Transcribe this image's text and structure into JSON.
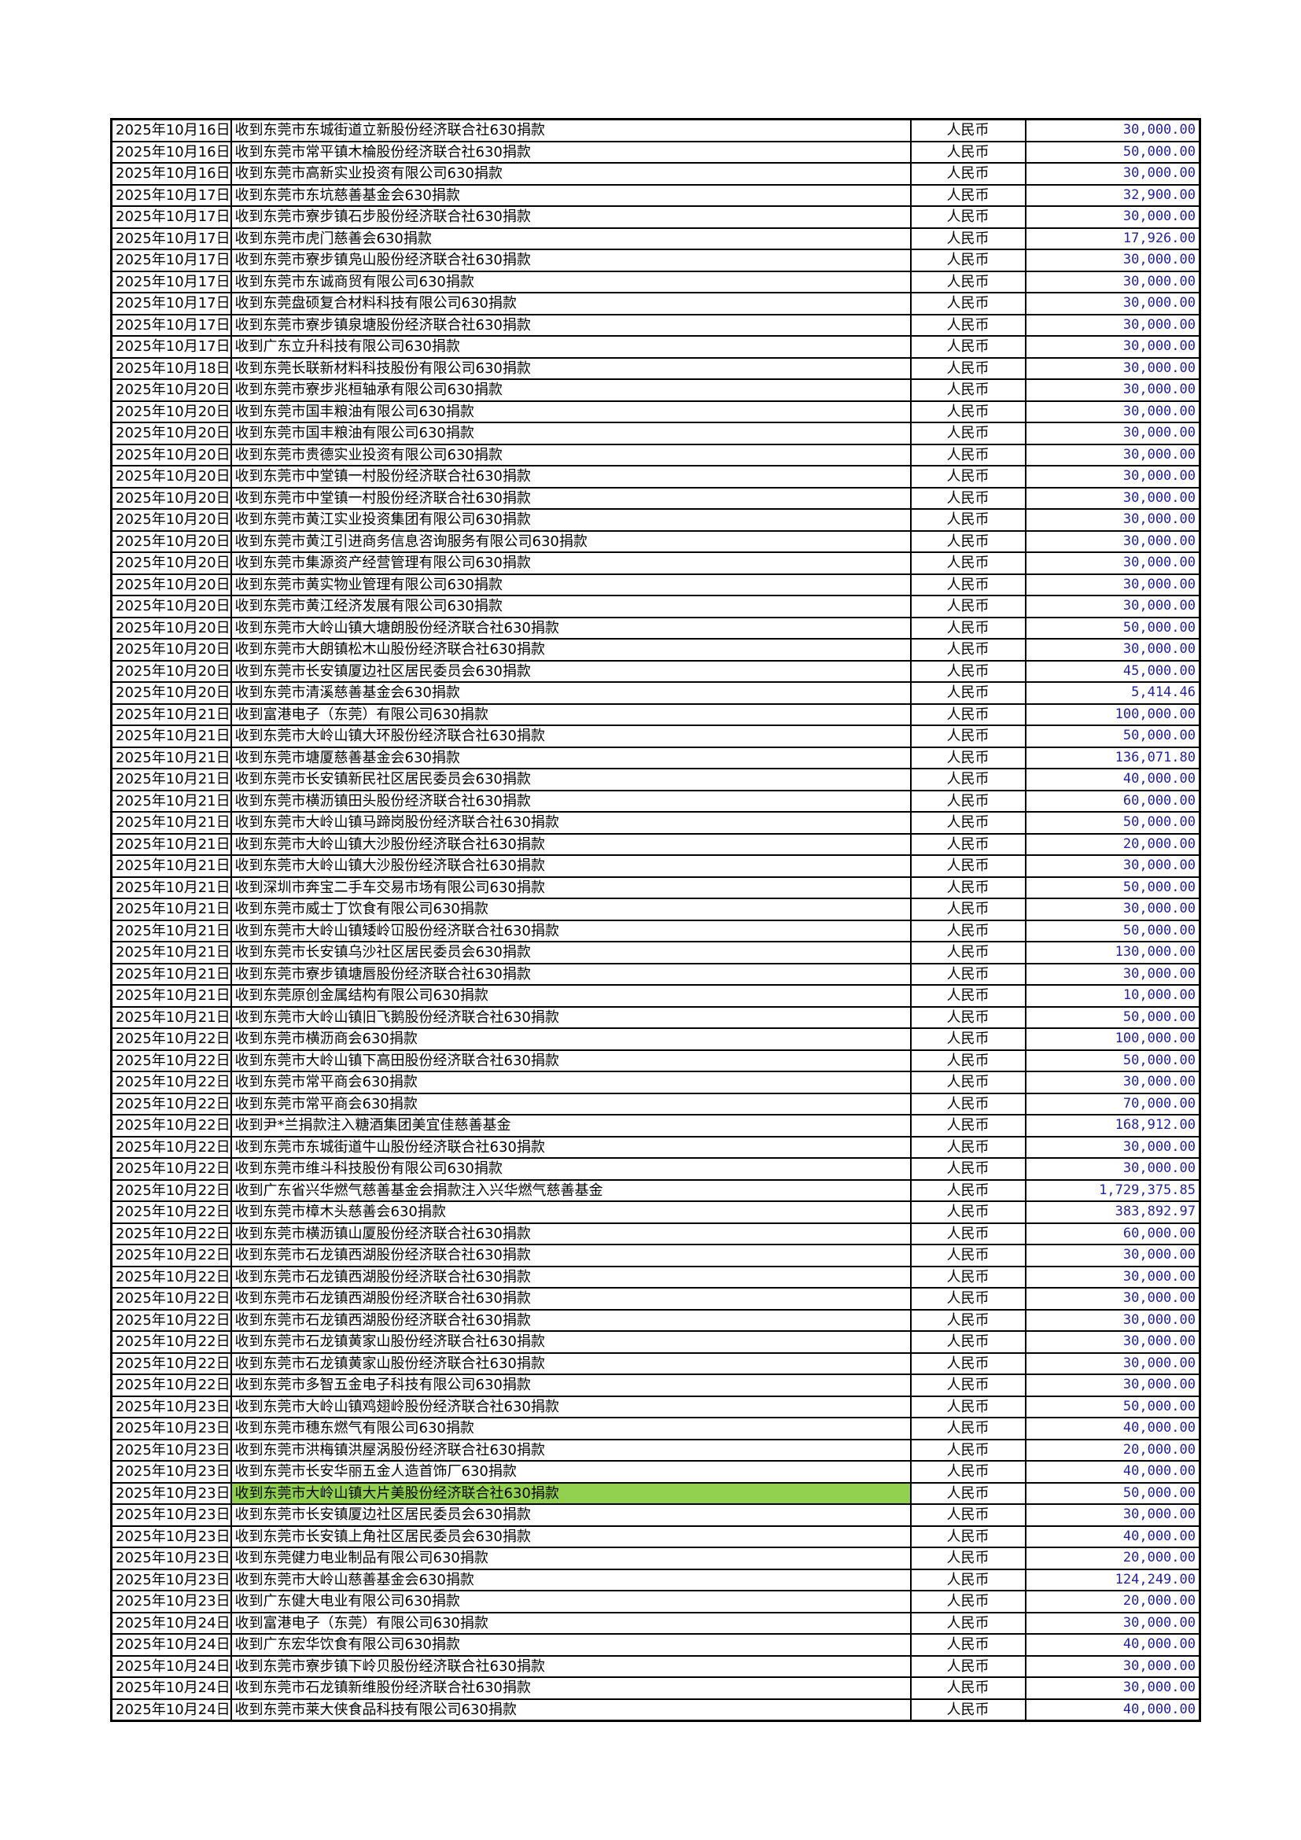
{
  "colors": {
    "amount_text": "#1f1f9f",
    "highlight": "#92d050"
  },
  "highlighted_row": 63,
  "rows": [
    [
      "2025年10月16日",
      "收到东莞市东城街道立新股份经济联合社630捐款",
      "人民币",
      "30,000.00"
    ],
    [
      "2025年10月16日",
      "收到东莞市常平镇木棆股份经济联合社630捐款",
      "人民币",
      "50,000.00"
    ],
    [
      "2025年10月16日",
      "收到东莞市高新实业投资有限公司630捐款",
      "人民币",
      "30,000.00"
    ],
    [
      "2025年10月17日",
      "收到东莞市东坑慈善基金会630捐款",
      "人民币",
      "32,900.00"
    ],
    [
      "2025年10月17日",
      "收到东莞市寮步镇石步股份经济联合社630捐款",
      "人民币",
      "30,000.00"
    ],
    [
      "2025年10月17日",
      "收到东莞市虎门慈善会630捐款",
      "人民币",
      "17,926.00"
    ],
    [
      "2025年10月17日",
      "收到东莞市寮步镇凫山股份经济联合社630捐款",
      "人民币",
      "30,000.00"
    ],
    [
      "2025年10月17日",
      "收到东莞市东诚商贸有限公司630捐款",
      "人民币",
      "30,000.00"
    ],
    [
      "2025年10月17日",
      "收到东莞盘硕复合材料科技有限公司630捐款",
      "人民币",
      "30,000.00"
    ],
    [
      "2025年10月17日",
      "收到东莞市寮步镇泉塘股份经济联合社630捐款",
      "人民币",
      "30,000.00"
    ],
    [
      "2025年10月17日",
      "收到广东立升科技有限公司630捐款",
      "人民币",
      "30,000.00"
    ],
    [
      "2025年10月18日",
      "收到东莞长联新材料科技股份有限公司630捐款",
      "人民币",
      "30,000.00"
    ],
    [
      "2025年10月20日",
      "收到东莞市寮步兆桓轴承有限公司630捐款",
      "人民币",
      "30,000.00"
    ],
    [
      "2025年10月20日",
      "收到东莞市国丰粮油有限公司630捐款",
      "人民币",
      "30,000.00"
    ],
    [
      "2025年10月20日",
      "收到东莞市国丰粮油有限公司630捐款",
      "人民币",
      "30,000.00"
    ],
    [
      "2025年10月20日",
      "收到东莞市贵德实业投资有限公司630捐款",
      "人民币",
      "30,000.00"
    ],
    [
      "2025年10月20日",
      "收到东莞市中堂镇一村股份经济联合社630捐款",
      "人民币",
      "30,000.00"
    ],
    [
      "2025年10月20日",
      "收到东莞市中堂镇一村股份经济联合社630捐款",
      "人民币",
      "30,000.00"
    ],
    [
      "2025年10月20日",
      "收到东莞市黄江实业投资集团有限公司630捐款",
      "人民币",
      "30,000.00"
    ],
    [
      "2025年10月20日",
      "收到东莞市黄江引进商务信息咨询服务有限公司630捐款",
      "人民币",
      "30,000.00"
    ],
    [
      "2025年10月20日",
      "收到东莞市集源资产经营管理有限公司630捐款",
      "人民币",
      "30,000.00"
    ],
    [
      "2025年10月20日",
      "收到东莞市黄实物业管理有限公司630捐款",
      "人民币",
      "30,000.00"
    ],
    [
      "2025年10月20日",
      "收到东莞市黄江经济发展有限公司630捐款",
      "人民币",
      "30,000.00"
    ],
    [
      "2025年10月20日",
      "收到东莞市大岭山镇大塘朗股份经济联合社630捐款",
      "人民币",
      "50,000.00"
    ],
    [
      "2025年10月20日",
      "收到东莞市大朗镇松木山股份经济联合社630捐款",
      "人民币",
      "30,000.00"
    ],
    [
      "2025年10月20日",
      "收到东莞市长安镇厦边社区居民委员会630捐款",
      "人民币",
      "45,000.00"
    ],
    [
      "2025年10月20日",
      "收到东莞市清溪慈善基金会630捐款",
      "人民币",
      "5,414.46"
    ],
    [
      "2025年10月21日",
      "收到富港电子（东莞）有限公司630捐款",
      "人民币",
      "100,000.00"
    ],
    [
      "2025年10月21日",
      "收到东莞市大岭山镇大环股份经济联合社630捐款",
      "人民币",
      "50,000.00"
    ],
    [
      "2025年10月21日",
      "收到东莞市塘厦慈善基金会630捐款",
      "人民币",
      "136,071.80"
    ],
    [
      "2025年10月21日",
      "收到东莞市长安镇新民社区居民委员会630捐款",
      "人民币",
      "40,000.00"
    ],
    [
      "2025年10月21日",
      "收到东莞市横沥镇田头股份经济联合社630捐款",
      "人民币",
      "60,000.00"
    ],
    [
      "2025年10月21日",
      "收到东莞市大岭山镇马蹄岗股份经济联合社630捐款",
      "人民币",
      "50,000.00"
    ],
    [
      "2025年10月21日",
      "收到东莞市大岭山镇大沙股份经济联合社630捐款",
      "人民币",
      "20,000.00"
    ],
    [
      "2025年10月21日",
      "收到东莞市大岭山镇大沙股份经济联合社630捐款",
      "人民币",
      "30,000.00"
    ],
    [
      "2025年10月21日",
      "收到深圳市奔宝二手车交易市场有限公司630捐款",
      "人民币",
      "50,000.00"
    ],
    [
      "2025年10月21日",
      "收到东莞市威士丁饮食有限公司630捐款",
      "人民币",
      "30,000.00"
    ],
    [
      "2025年10月21日",
      "收到东莞市大岭山镇矮岭冚股份经济联合社630捐款",
      "人民币",
      "50,000.00"
    ],
    [
      "2025年10月21日",
      "收到东莞市长安镇乌沙社区居民委员会630捐款",
      "人民币",
      "130,000.00"
    ],
    [
      "2025年10月21日",
      "收到东莞市寮步镇塘唇股份经济联合社630捐款",
      "人民币",
      "30,000.00"
    ],
    [
      "2025年10月21日",
      "收到东莞原创金属结构有限公司630捐款",
      "人民币",
      "10,000.00"
    ],
    [
      "2025年10月21日",
      "收到东莞市大岭山镇旧飞鹅股份经济联合社630捐款",
      "人民币",
      "50,000.00"
    ],
    [
      "2025年10月22日",
      "收到东莞市横沥商会630捐款",
      "人民币",
      "100,000.00"
    ],
    [
      "2025年10月22日",
      "收到东莞市大岭山镇下高田股份经济联合社630捐款",
      "人民币",
      "50,000.00"
    ],
    [
      "2025年10月22日",
      "收到东莞市常平商会630捐款",
      "人民币",
      "30,000.00"
    ],
    [
      "2025年10月22日",
      "收到东莞市常平商会630捐款",
      "人民币",
      "70,000.00"
    ],
    [
      "2025年10月22日",
      "收到尹*兰捐款注入糖酒集团美宜佳慈善基金",
      "人民币",
      "168,912.00"
    ],
    [
      "2025年10月22日",
      "收到东莞市东城街道牛山股份经济联合社630捐款",
      "人民币",
      "30,000.00"
    ],
    [
      "2025年10月22日",
      "收到东莞市维斗科技股份有限公司630捐款",
      "人民币",
      "30,000.00"
    ],
    [
      "2025年10月22日",
      "收到广东省兴华燃气慈善基金会捐款注入兴华燃气慈善基金",
      "人民币",
      "1,729,375.85"
    ],
    [
      "2025年10月22日",
      "收到东莞市樟木头慈善会630捐款",
      "人民币",
      "383,892.97"
    ],
    [
      "2025年10月22日",
      "收到东莞市横沥镇山厦股份经济联合社630捐款",
      "人民币",
      "60,000.00"
    ],
    [
      "2025年10月22日",
      "收到东莞市石龙镇西湖股份经济联合社630捐款",
      "人民币",
      "30,000.00"
    ],
    [
      "2025年10月22日",
      "收到东莞市石龙镇西湖股份经济联合社630捐款",
      "人民币",
      "30,000.00"
    ],
    [
      "2025年10月22日",
      "收到东莞市石龙镇西湖股份经济联合社630捐款",
      "人民币",
      "30,000.00"
    ],
    [
      "2025年10月22日",
      "收到东莞市石龙镇西湖股份经济联合社630捐款",
      "人民币",
      "30,000.00"
    ],
    [
      "2025年10月22日",
      "收到东莞市石龙镇黄家山股份经济联合社630捐款",
      "人民币",
      "30,000.00"
    ],
    [
      "2025年10月22日",
      "收到东莞市石龙镇黄家山股份经济联合社630捐款",
      "人民币",
      "30,000.00"
    ],
    [
      "2025年10月22日",
      "收到东莞市多智五金电子科技有限公司630捐款",
      "人民币",
      "30,000.00"
    ],
    [
      "2025年10月23日",
      "收到东莞市大岭山镇鸡翅岭股份经济联合社630捐款",
      "人民币",
      "50,000.00"
    ],
    [
      "2025年10月23日",
      "收到东莞市穗东燃气有限公司630捐款",
      "人民币",
      "40,000.00"
    ],
    [
      "2025年10月23日",
      "收到东莞市洪梅镇洪屋涡股份经济联合社630捐款",
      "人民币",
      "20,000.00"
    ],
    [
      "2025年10月23日",
      "收到东莞市长安华丽五金人造首饰厂630捐款",
      "人民币",
      "40,000.00"
    ],
    [
      "2025年10月23日",
      "收到东莞市大岭山镇大片美股份经济联合社630捐款",
      "人民币",
      "50,000.00"
    ],
    [
      "2025年10月23日",
      "收到东莞市长安镇厦边社区居民委员会630捐款",
      "人民币",
      "30,000.00"
    ],
    [
      "2025年10月23日",
      "收到东莞市长安镇上角社区居民委员会630捐款",
      "人民币",
      "40,000.00"
    ],
    [
      "2025年10月23日",
      "收到东莞健力电业制品有限公司630捐款",
      "人民币",
      "20,000.00"
    ],
    [
      "2025年10月23日",
      "收到东莞市大岭山慈善基金会630捐款",
      "人民币",
      "124,249.00"
    ],
    [
      "2025年10月23日",
      "收到广东健大电业有限公司630捐款",
      "人民币",
      "20,000.00"
    ],
    [
      "2025年10月24日",
      "收到富港电子（东莞）有限公司630捐款",
      "人民币",
      "30,000.00"
    ],
    [
      "2025年10月24日",
      "收到广东宏华饮食有限公司630捐款",
      "人民币",
      "40,000.00"
    ],
    [
      "2025年10月24日",
      "收到东莞市寮步镇下岭贝股份经济联合社630捐款",
      "人民币",
      "30,000.00"
    ],
    [
      "2025年10月24日",
      "收到东莞市石龙镇新维股份经济联合社630捐款",
      "人民币",
      "30,000.00"
    ],
    [
      "2025年10月24日",
      "收到东莞市莱大侠食品科技有限公司630捐款",
      "人民币",
      "40,000.00"
    ]
  ]
}
